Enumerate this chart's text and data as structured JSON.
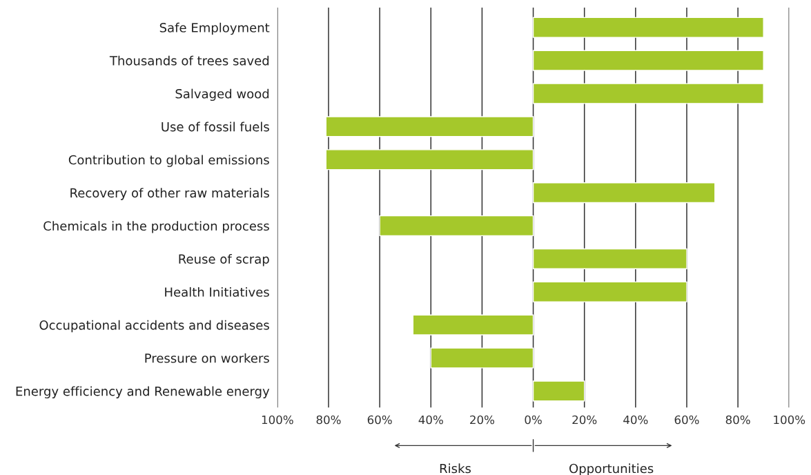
{
  "chart_data": {
    "type": "bar",
    "orientation": "horizontal",
    "categories": [
      "Safe Employment",
      "Thousands of trees saved",
      "Salvaged wood",
      "Use of fossil fuels",
      "Contribution to global emissions",
      "Recovery of other raw materials",
      "Chemicals in the production process",
      "Reuse of scrap",
      "Health Initiatives",
      "Occupational accidents and diseases",
      "Pressure on workers",
      "Energy efficiency and Renewable energy"
    ],
    "values": [
      90,
      90,
      90,
      -81,
      -81,
      71,
      -60,
      60,
      60,
      -47,
      -40,
      20
    ],
    "color": "#a5c82b",
    "xlim": [
      -100,
      100
    ],
    "xticks": [
      {
        "value": -100,
        "label": "100%"
      },
      {
        "value": -80,
        "label": "80%"
      },
      {
        "value": -60,
        "label": "60%"
      },
      {
        "value": -40,
        "label": "40%"
      },
      {
        "value": -20,
        "label": "20%"
      },
      {
        "value": 0,
        "label": "0%"
      },
      {
        "value": 20,
        "label": "20%"
      },
      {
        "value": 40,
        "label": "40%"
      },
      {
        "value": 60,
        "label": "60%"
      },
      {
        "value": 80,
        "label": "80%"
      },
      {
        "value": 100,
        "label": "100%"
      }
    ],
    "grid": "x",
    "annotations": [
      "Risks",
      "Opportunities"
    ]
  }
}
